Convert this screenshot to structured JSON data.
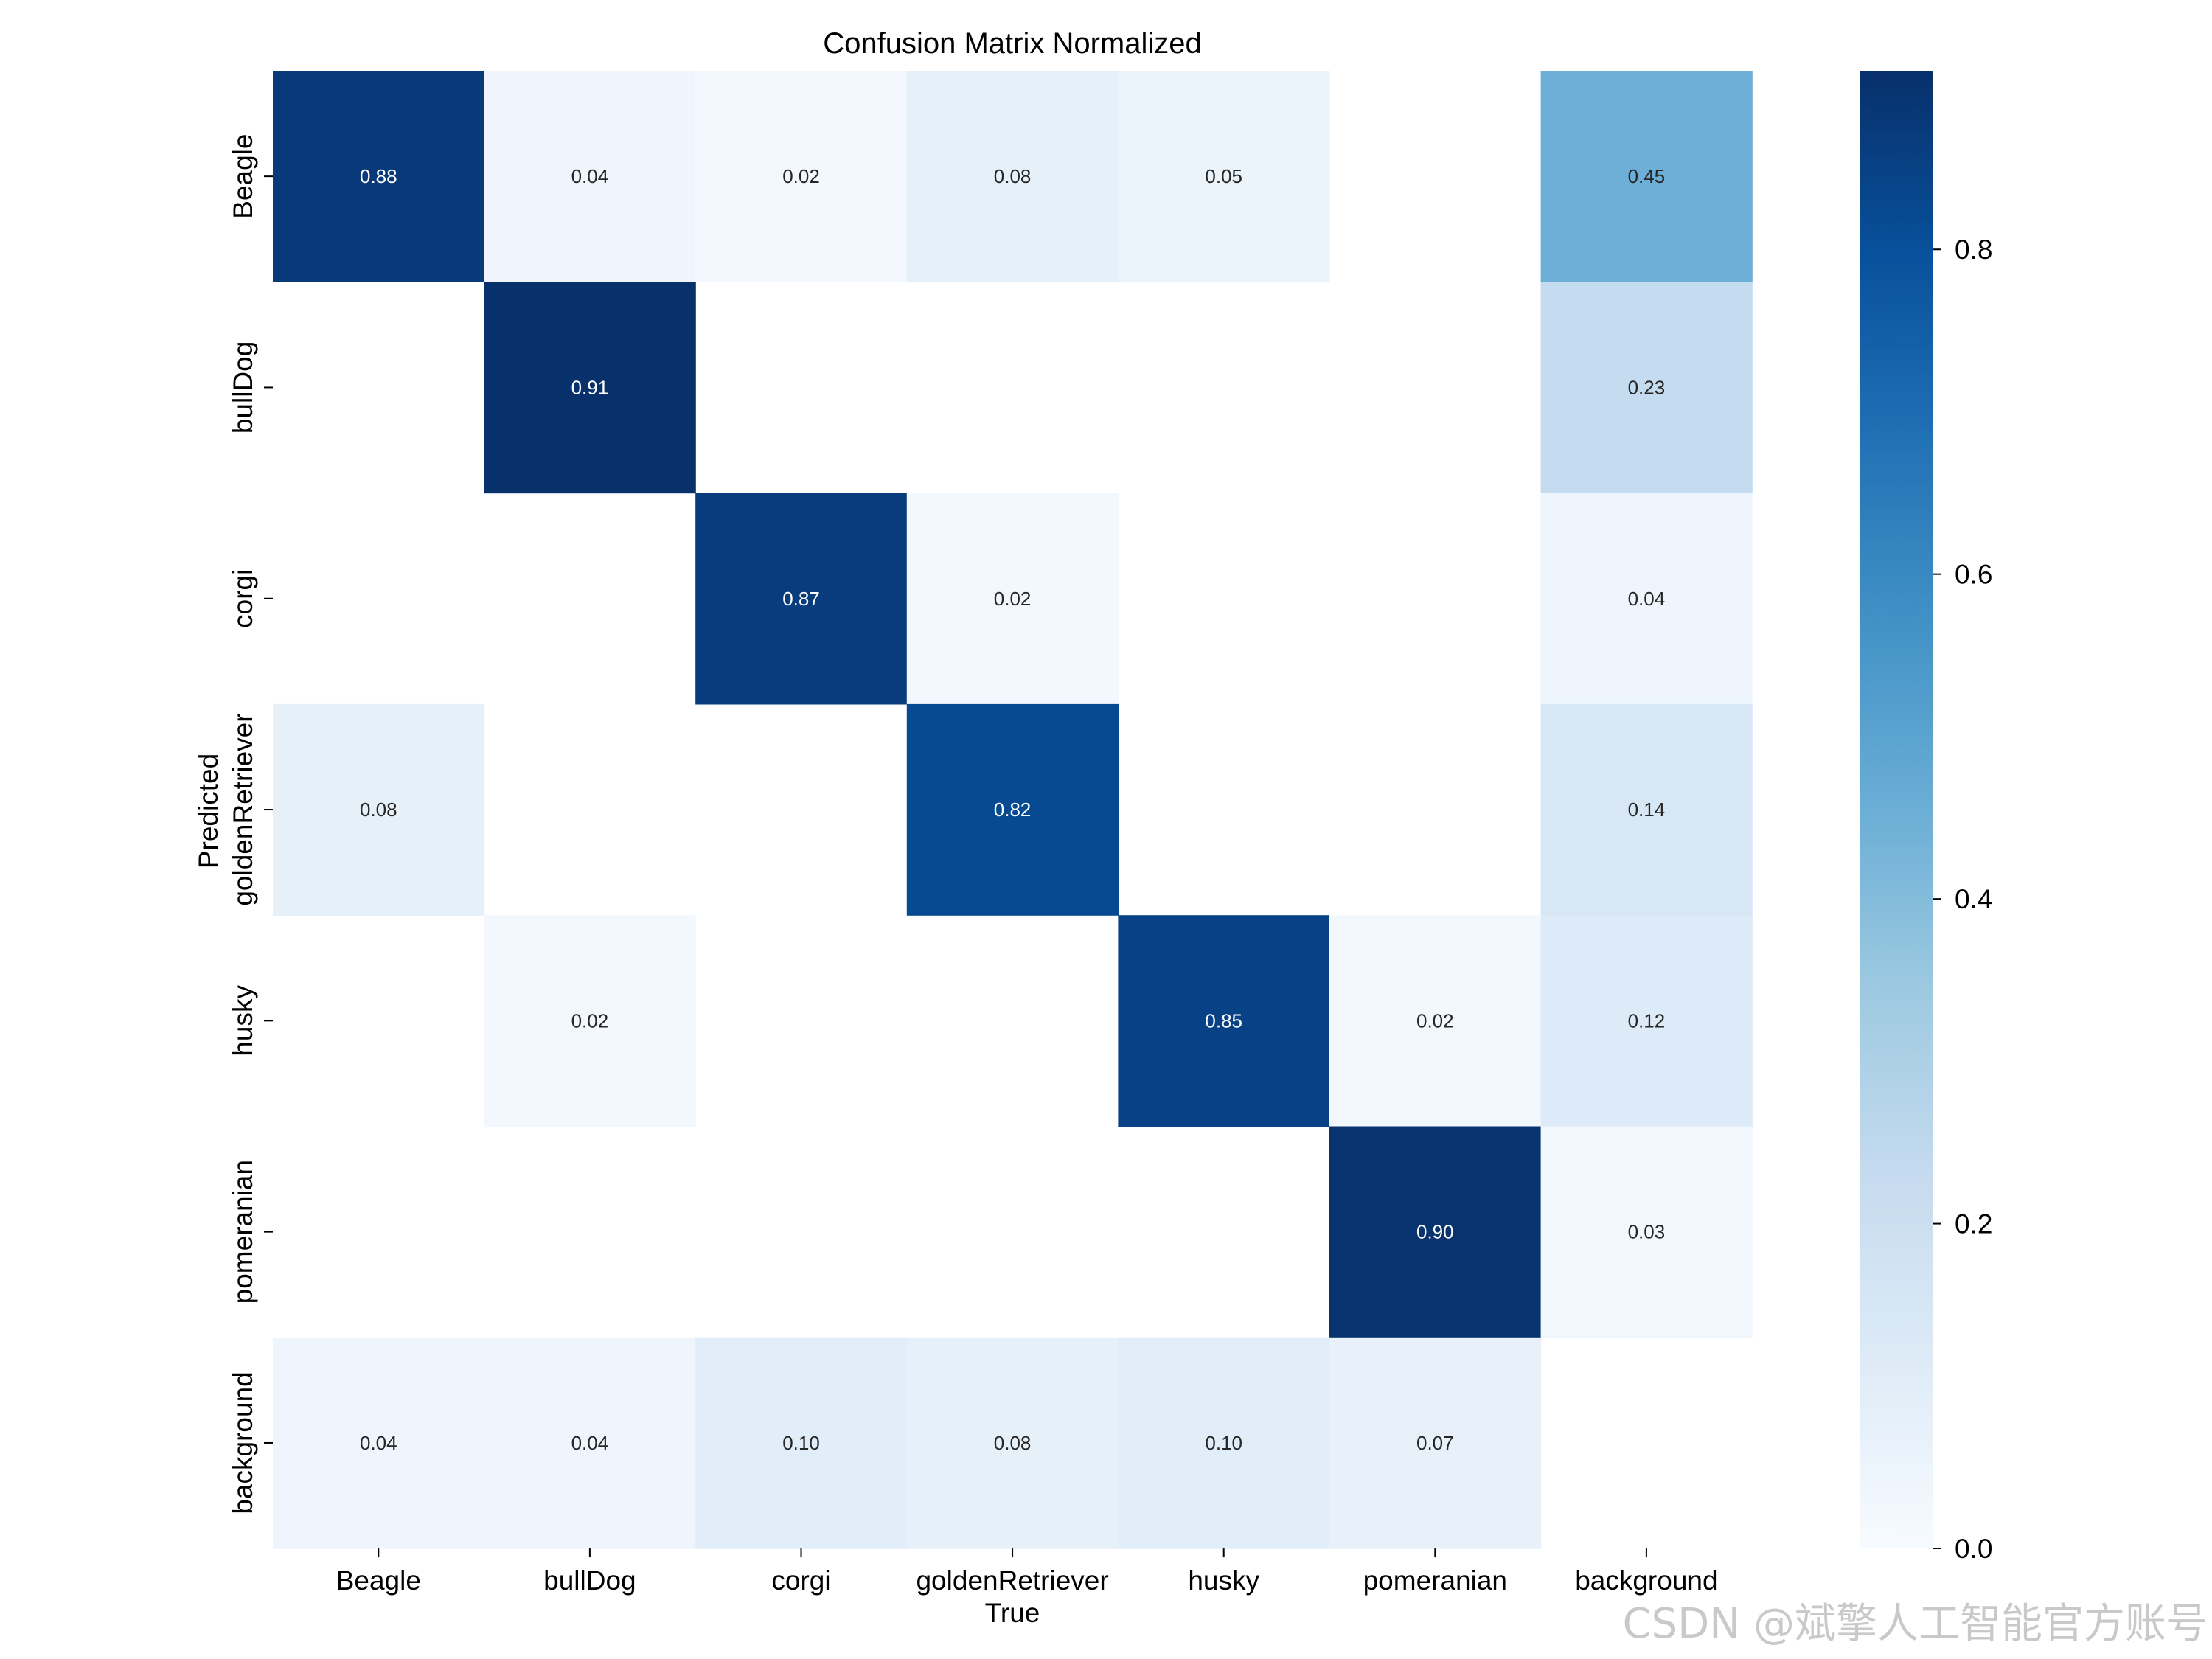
{
  "chart_data": {
    "type": "heatmap",
    "title": "Confusion Matrix Normalized",
    "xlabel": "True",
    "ylabel": "Predicted",
    "x_categories": [
      "Beagle",
      "bullDog",
      "corgi",
      "goldenRetriever",
      "husky",
      "pomeranian",
      "background"
    ],
    "y_categories": [
      "Beagle",
      "bullDog",
      "corgi",
      "goldenRetriever",
      "husky",
      "pomeranian",
      "background"
    ],
    "values": [
      [
        0.88,
        0.04,
        0.02,
        0.08,
        0.05,
        null,
        0.45
      ],
      [
        null,
        0.91,
        null,
        null,
        null,
        null,
        0.23
      ],
      [
        null,
        null,
        0.87,
        0.02,
        null,
        null,
        0.04
      ],
      [
        0.08,
        null,
        null,
        0.82,
        null,
        null,
        0.14
      ],
      [
        null,
        0.02,
        null,
        null,
        0.85,
        0.02,
        0.12
      ],
      [
        null,
        null,
        null,
        null,
        null,
        0.9,
        0.03
      ],
      [
        0.04,
        0.04,
        0.1,
        0.08,
        0.1,
        0.07,
        null
      ]
    ],
    "colorbar": {
      "min": 0.0,
      "max": 0.91,
      "ticks": [
        "0.0",
        "0.2",
        "0.4",
        "0.6",
        "0.8"
      ],
      "colormap": "Blues",
      "colors": [
        "#f7fbff",
        "#deebf7",
        "#c6dbef",
        "#9ecae1",
        "#6baed6",
        "#4292c6",
        "#2171b5",
        "#08519c",
        "#08306b"
      ]
    }
  },
  "watermark": "CSDN @斌擎人工智能官方账号"
}
